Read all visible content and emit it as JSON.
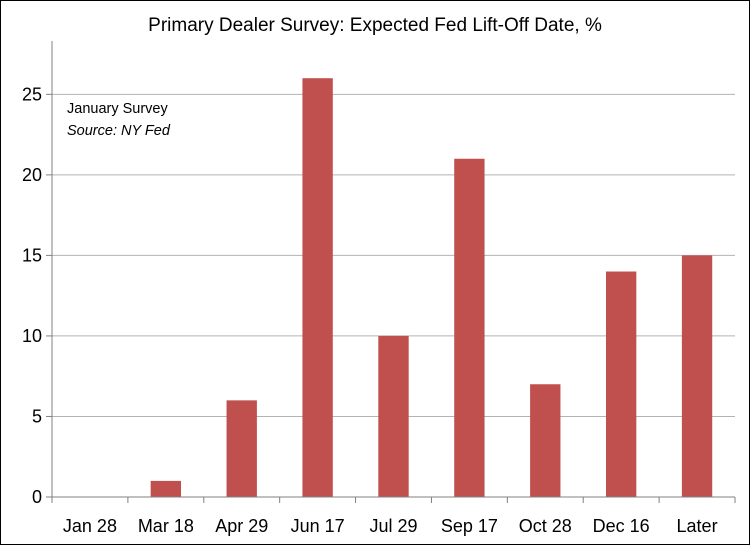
{
  "chart_data": {
    "type": "bar",
    "title": "Primary Dealer Survey: Expected Fed Lift-Off Date, %",
    "xlabel": "",
    "ylabel": "",
    "categories": [
      "Jan 28",
      "Mar 18",
      "Apr 29",
      "Jun 17",
      "Jul 29",
      "Sep 17",
      "Oct 28",
      "Dec 16",
      "Later"
    ],
    "values": [
      0,
      1,
      6,
      26,
      10,
      21,
      7,
      14,
      15
    ],
    "ylim": [
      0,
      28
    ],
    "yticks": [
      0,
      5,
      10,
      15,
      20,
      25
    ],
    "grid": "horizontal",
    "bar_color": "#c0504d",
    "annotations": {
      "line1": "January Survey",
      "line2": "Source: NY Fed"
    }
  }
}
